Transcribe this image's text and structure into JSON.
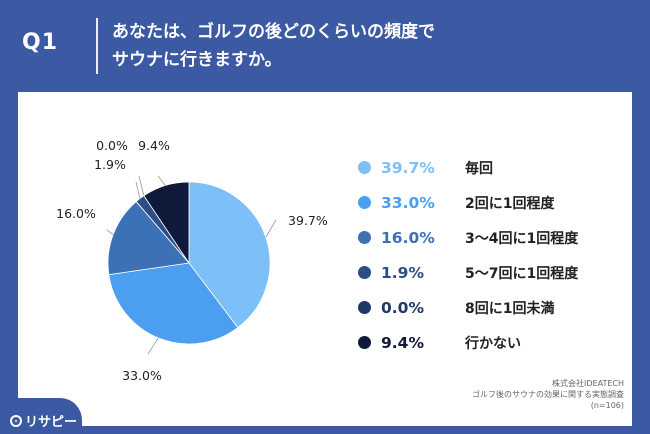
{
  "header": {
    "question": "Q1",
    "title_line1": "あなたは、ゴルフの後どのくらいの頻度で",
    "title_line2": "サウナに行きますか。"
  },
  "chart_data": {
    "type": "pie",
    "start": "12 o'clock, clockwise",
    "slices": [
      {
        "label": "毎回",
        "value": 39.7,
        "display": "39.7%",
        "color": "#7dbff8"
      },
      {
        "label": "2回に1回程度",
        "value": 33.0,
        "display": "33.0%",
        "color": "#4b9ef0"
      },
      {
        "label": "3〜4回に1回程度",
        "value": 16.0,
        "display": "16.0%",
        "color": "#3d71b5"
      },
      {
        "label": "5〜7回に1回程度",
        "value": 1.9,
        "display": "1.9%",
        "color": "#2b4e86"
      },
      {
        "label": "8回に1回未満",
        "value": 0.0,
        "display": "0.0%",
        "color": "#1f3866"
      },
      {
        "label": "行かない",
        "value": 9.4,
        "display": "9.4%",
        "color": "#0f1a3a"
      }
    ]
  },
  "source": {
    "line1": "株式会社IDEATECH",
    "line2": "ゴルフ後のサウナの効果に関する実態調査",
    "line3": "(n=106)"
  },
  "brand": {
    "name": "リサピー"
  }
}
